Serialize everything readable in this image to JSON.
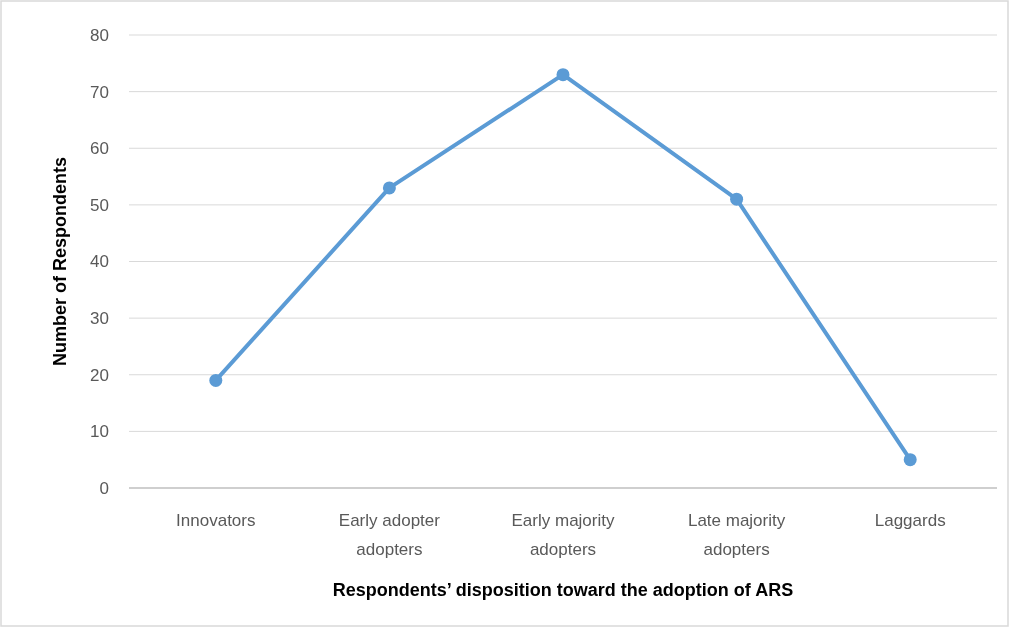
{
  "chart_data": {
    "type": "line",
    "xlabel": "Respondents’ disposition toward the adoption of ARS",
    "ylabel": "Number of Respondents",
    "categories": [
      "Innovators",
      "Early adopter adopters",
      "Early majority adopters",
      "Late majority adopters",
      "Laggards"
    ],
    "series": [
      {
        "color": "#5b9bd5",
        "values": [
          19,
          53,
          73,
          51,
          5
        ]
      }
    ],
    "ylim": [
      0,
      80
    ],
    "yticks": [
      0,
      10,
      20,
      30,
      40,
      50,
      60,
      70,
      80
    ],
    "grid": "y",
    "marker": "circle",
    "line_style": "solid"
  }
}
